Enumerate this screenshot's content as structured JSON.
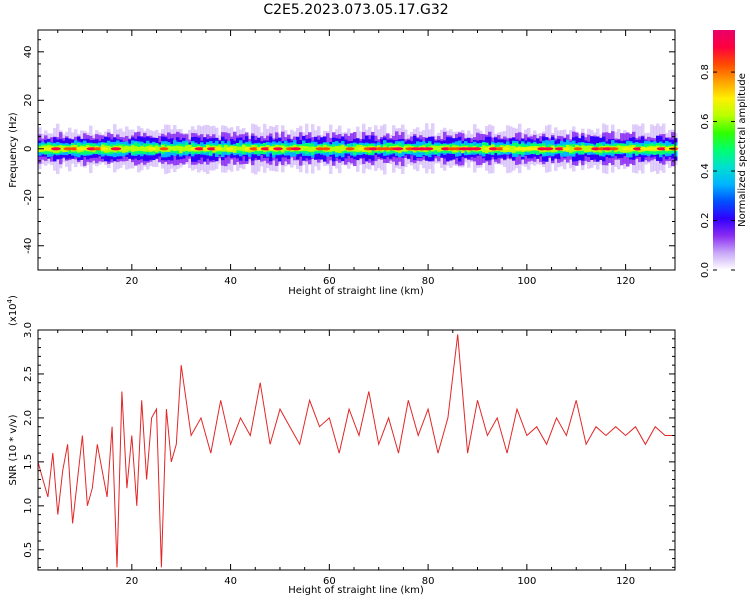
{
  "figure": {
    "title": "C2E5.2023.073.05.17.G32"
  },
  "chart_data": [
    {
      "type": "heatmap",
      "title": "",
      "xlabel": "Height of straight line (km)",
      "ylabel": "Frequency (Hz)",
      "xlim": [
        1,
        130
      ],
      "ylim": [
        -50,
        49
      ],
      "xticks": [
        20,
        40,
        60,
        80,
        100,
        120
      ],
      "xtick_labels": [
        "20",
        "40",
        "60",
        "80",
        "100",
        "120"
      ],
      "yticks": [
        -40,
        -20,
        0,
        20,
        40
      ],
      "ytick_labels": [
        "-40",
        "-20",
        "0",
        "20",
        "40"
      ],
      "yticklabel_rotation": "vertical",
      "grid": false,
      "description_values": {
        "signal_center_frequency_hz": 0,
        "signal_half_width_hz": 4,
        "peak_amplitude": 1.0
      },
      "colorbar": {
        "label": "Normalized spectral amplitude",
        "range": [
          0.0,
          0.97
        ],
        "ticks": [
          0.0,
          0.2,
          0.4,
          0.6,
          0.8
        ],
        "tick_labels": [
          "0.0",
          "0.2",
          "0.4",
          "0.6",
          "0.8"
        ],
        "colors": [
          "#ffffff",
          "#c9a8f7",
          "#8a2cf2",
          "#3000ff",
          "#0050ff",
          "#00b4ff",
          "#00e0d0",
          "#00ff70",
          "#30ff00",
          "#b8ff00",
          "#fff000",
          "#ffa000",
          "#ff4a00",
          "#ff0040",
          "#e8006a"
        ]
      }
    },
    {
      "type": "line",
      "title": "",
      "xlabel": "Height of straight line (km)",
      "ylabel": "SNR (10 * v/v)",
      "scale_label": "(x10",
      "scale_exponent": "4",
      "scale_close": ")",
      "xlim": [
        1,
        130
      ],
      "ylim": [
        0.27,
        3.0
      ],
      "xticks": [
        20,
        40,
        60,
        80,
        100,
        120
      ],
      "xtick_labels": [
        "20",
        "40",
        "60",
        "80",
        "100",
        "120"
      ],
      "yticks": [
        0.5,
        1.0,
        1.5,
        2.0,
        2.5,
        3.0
      ],
      "ytick_labels": [
        "0.5",
        "1.0",
        "1.5",
        "2.0",
        "2.5",
        "3.0"
      ],
      "grid": false,
      "series": [
        {
          "color": "#e32626",
          "x": [
            1,
            2,
            3,
            4,
            5,
            6,
            7,
            8,
            9,
            10,
            11,
            12,
            13,
            14,
            15,
            16,
            17,
            18,
            19,
            20,
            21,
            22,
            23,
            24,
            25,
            26,
            27,
            28,
            29,
            30,
            32,
            34,
            36,
            38,
            40,
            42,
            44,
            46,
            48,
            50,
            52,
            54,
            56,
            58,
            60,
            62,
            64,
            66,
            68,
            70,
            72,
            74,
            76,
            78,
            80,
            82,
            84,
            86,
            88,
            90,
            92,
            94,
            96,
            98,
            100,
            102,
            104,
            106,
            108,
            110,
            112,
            114,
            116,
            118,
            120,
            122,
            124,
            126,
            128,
            130
          ],
          "y": [
            1.5,
            1.3,
            1.1,
            1.6,
            0.9,
            1.4,
            1.7,
            0.8,
            1.3,
            1.8,
            1.0,
            1.2,
            1.7,
            1.4,
            1.1,
            1.9,
            0.3,
            2.3,
            1.2,
            1.8,
            1.0,
            2.2,
            1.3,
            2.0,
            2.1,
            0.3,
            2.1,
            1.5,
            1.7,
            2.6,
            1.8,
            2.0,
            1.6,
            2.2,
            1.7,
            2.0,
            1.8,
            2.4,
            1.7,
            2.1,
            1.9,
            1.7,
            2.2,
            1.9,
            2.0,
            1.6,
            2.1,
            1.8,
            2.3,
            1.7,
            2.0,
            1.6,
            2.2,
            1.8,
            2.1,
            1.6,
            2.0,
            2.95,
            1.6,
            2.2,
            1.8,
            2.0,
            1.6,
            2.1,
            1.8,
            1.9,
            1.7,
            2.0,
            1.8,
            2.2,
            1.7,
            1.9,
            1.8,
            1.9,
            1.8,
            1.9,
            1.7,
            1.9,
            1.8,
            1.8
          ]
        }
      ]
    }
  ]
}
